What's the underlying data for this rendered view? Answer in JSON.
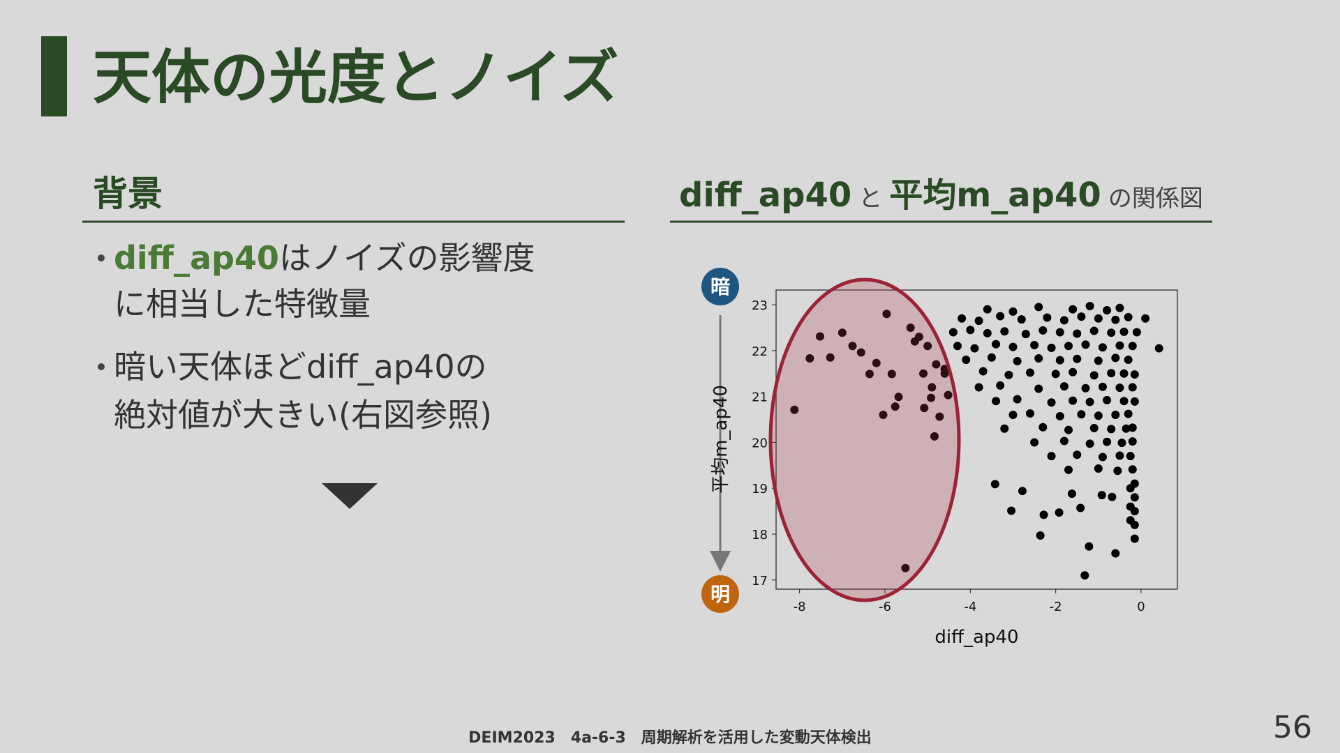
{
  "header": {
    "title": "天体の光度とノイズ"
  },
  "left": {
    "heading": "背景",
    "bullets": [
      {
        "highlight": "diff_ap40",
        "lines": [
          "はノイズの影響度",
          "に相当した特徴量"
        ]
      },
      {
        "lines": [
          "暗い天体ほどdiff_ap40の",
          "絶対値が大きい(右図参照)"
        ]
      }
    ]
  },
  "right": {
    "heading": [
      {
        "text": "diff_ap40",
        "strong": true
      },
      {
        "text": "と",
        "strong": false
      },
      {
        "text": "平均m_ap40",
        "strong": true
      },
      {
        "text": "の関係図",
        "strong": false
      }
    ],
    "dark_label": "暗",
    "bright_label": "明"
  },
  "chart_data": {
    "type": "scatter",
    "xlabel": "diff_ap40",
    "ylabel": "平均m_ap40",
    "xlim": [
      -8.55,
      0.85
    ],
    "ylim": [
      16.8,
      23.32
    ],
    "xticks": [
      -8,
      -6,
      -4,
      -2,
      0
    ],
    "yticks": [
      17,
      18,
      19,
      20,
      21,
      22,
      23
    ],
    "series": [
      {
        "color": "#000000",
        "x": [
          -8.12,
          -7.76,
          -7.52,
          -7.28,
          -7.0,
          -6.76,
          -6.56,
          -6.36,
          -6.2,
          -5.96,
          -5.84,
          -6.04,
          -5.76,
          -5.68,
          -5.52,
          -4.84,
          -4.72,
          -5.08,
          -4.92,
          -4.52,
          -5.4,
          -5.2,
          -5.0,
          -5.3,
          -4.8,
          -4.6,
          -5.1,
          -4.9,
          0.42,
          -3.42,
          -3.04,
          -2.78,
          -2.36,
          -1.32,
          -0.6,
          -1.22,
          -2.28,
          -1.92,
          -1.62,
          -1.42,
          -0.92,
          -0.68,
          -3.6,
          -3.0,
          -2.4,
          -1.6,
          -1.2,
          -0.8,
          -0.5,
          -4.2,
          -3.8,
          -3.3,
          -2.8,
          -2.2,
          -1.8,
          -1.4,
          -1.0,
          -0.6,
          -0.3,
          0.1,
          -4.4,
          -4.0,
          -3.6,
          -3.2,
          -2.7,
          -2.3,
          -1.9,
          -1.5,
          -1.1,
          -0.7,
          -0.4,
          -0.1,
          -4.3,
          -3.9,
          -3.4,
          -3.0,
          -2.5,
          -2.1,
          -1.7,
          -1.3,
          -0.9,
          -0.5,
          -0.2,
          -4.1,
          -3.5,
          -2.9,
          -2.4,
          -1.9,
          -1.5,
          -1.0,
          -0.6,
          -0.3,
          -4.6,
          -3.7,
          -3.1,
          -2.6,
          -2.0,
          -1.6,
          -1.1,
          -0.7,
          -0.4,
          -0.15,
          -3.8,
          -3.3,
          -2.4,
          -1.8,
          -1.3,
          -0.9,
          -0.5,
          -0.2,
          -3.4,
          -2.9,
          -2.1,
          -1.6,
          -1.2,
          -0.8,
          -0.4,
          -0.15,
          -3.0,
          -2.6,
          -1.9,
          -1.4,
          -1.0,
          -0.6,
          -0.3,
          -3.2,
          -2.3,
          -1.7,
          -1.1,
          -0.7,
          -0.35,
          -0.2,
          -2.5,
          -1.8,
          -1.2,
          -0.8,
          -0.45,
          -0.2,
          -2.1,
          -1.5,
          -0.9,
          -0.5,
          -0.25,
          -1.7,
          -1.0,
          -0.55,
          -0.2,
          -0.15,
          -0.15,
          -0.15,
          -0.15,
          -0.15,
          -0.25,
          -0.25,
          -0.25
        ],
        "values": [
          20.71,
          21.83,
          22.31,
          21.85,
          22.39,
          22.1,
          21.96,
          21.49,
          21.73,
          22.8,
          21.49,
          20.6,
          20.78,
          20.99,
          17.26,
          20.13,
          20.56,
          20.75,
          20.97,
          21.03,
          22.5,
          22.3,
          22.1,
          22.2,
          21.7,
          21.6,
          21.5,
          21.2,
          22.05,
          19.09,
          18.51,
          18.94,
          17.97,
          17.1,
          17.58,
          17.73,
          18.42,
          18.47,
          18.88,
          18.57,
          18.85,
          18.81,
          22.9,
          22.85,
          22.95,
          22.9,
          22.97,
          22.88,
          22.93,
          22.7,
          22.65,
          22.75,
          22.68,
          22.72,
          22.66,
          22.74,
          22.7,
          22.67,
          22.73,
          22.7,
          22.4,
          22.45,
          22.38,
          22.42,
          22.36,
          22.44,
          22.4,
          22.37,
          22.43,
          22.39,
          22.41,
          22.4,
          22.1,
          22.05,
          22.14,
          22.08,
          22.12,
          22.06,
          22.1,
          22.13,
          22.07,
          22.11,
          22.1,
          21.8,
          21.85,
          21.77,
          21.83,
          21.79,
          21.82,
          21.78,
          21.84,
          21.8,
          21.5,
          21.55,
          21.47,
          21.52,
          21.49,
          21.53,
          21.46,
          21.51,
          21.5,
          21.48,
          21.2,
          21.24,
          21.17,
          21.22,
          21.18,
          21.21,
          21.19,
          21.2,
          20.9,
          20.94,
          20.87,
          20.91,
          20.88,
          20.92,
          20.9,
          20.89,
          20.6,
          20.63,
          20.57,
          20.61,
          20.58,
          20.6,
          20.62,
          20.3,
          20.33,
          20.27,
          20.31,
          20.29,
          20.3,
          20.32,
          20.0,
          20.03,
          19.97,
          20.01,
          19.99,
          20.02,
          19.7,
          19.73,
          19.68,
          19.71,
          19.7,
          19.4,
          19.43,
          19.38,
          19.41,
          19.1,
          18.8,
          18.5,
          18.2,
          17.9,
          19.0,
          18.6,
          18.3
        ]
      }
    ]
  },
  "footer": {
    "text": "DEIM2023　4a-6-3　周期解析を活用した変動天体検出",
    "page": "56"
  }
}
